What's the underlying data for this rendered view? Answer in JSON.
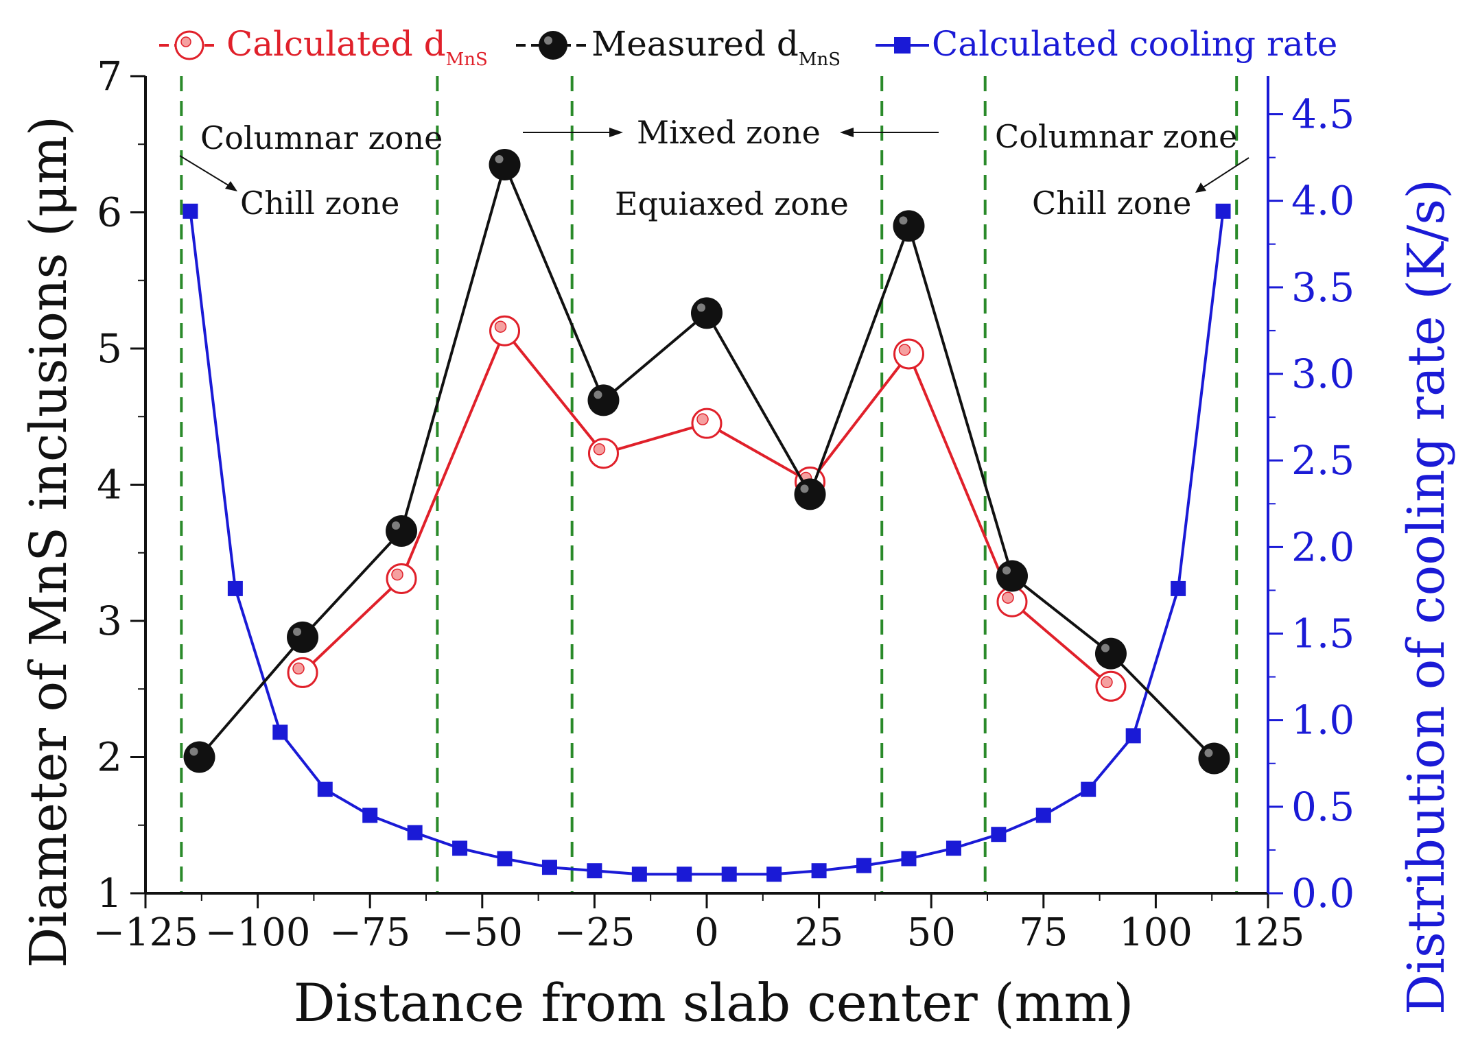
{
  "chart_data": {
    "type": "line",
    "xlabel": "Distance from slab center (mm)",
    "ylabel_left": "Diameter of MnS inclusions (μm)",
    "ylabel_right": "Distribution of cooling rate (K/s)",
    "xlim": [
      -125,
      125
    ],
    "ylim_left": [
      1,
      7
    ],
    "ylim_right": [
      0,
      4.72
    ],
    "x_ticks": [
      -125,
      -100,
      -75,
      -50,
      -25,
      0,
      25,
      50,
      75,
      100,
      125
    ],
    "x_tick_labels": [
      "−125",
      "−100",
      "−75",
      "−50",
      "−25",
      "0",
      "25",
      "50",
      "75",
      "100",
      "125"
    ],
    "y_left_ticks": [
      1,
      2,
      3,
      4,
      5,
      6,
      7
    ],
    "y_left_tick_labels": [
      "1",
      "2",
      "3",
      "4",
      "5",
      "6",
      "7"
    ],
    "y_right_ticks": [
      0,
      0.5,
      1.0,
      1.5,
      2.0,
      2.5,
      3.0,
      3.5,
      4.0,
      4.5
    ],
    "y_right_tick_labels": [
      "0.0",
      "0.5",
      "1.0",
      "1.5",
      "2.0",
      "2.5",
      "3.0",
      "3.5",
      "4.0",
      "4.5"
    ],
    "legend": {
      "placement": "top",
      "items": [
        {
          "label": "Calculated d",
          "sub": "MnS",
          "color": "#e0202a"
        },
        {
          "label": "Measured d",
          "sub": "MnS",
          "color": "#111111"
        },
        {
          "label": "Calculated cooling rate",
          "sub": "",
          "color": "#1a1ad6"
        }
      ]
    },
    "series": [
      {
        "name": "Calculated dMnS",
        "axis": "left",
        "color": "#e0202a",
        "marker": "open-circle",
        "x": [
          -90,
          -68,
          -45,
          -23,
          0,
          23,
          45,
          68,
          90
        ],
        "values": [
          2.62,
          3.31,
          5.13,
          4.23,
          4.45,
          4.02,
          4.96,
          3.14,
          2.52
        ]
      },
      {
        "name": "Measured dMnS",
        "axis": "left",
        "color": "#111111",
        "marker": "filled-circle",
        "x": [
          -113,
          -90,
          -68,
          -45,
          -23,
          0,
          23,
          45,
          68,
          90,
          113
        ],
        "values": [
          2.0,
          2.88,
          3.66,
          6.35,
          4.62,
          5.26,
          3.93,
          5.9,
          3.33,
          2.76,
          1.99
        ]
      },
      {
        "name": "Calculated cooling rate",
        "axis": "right",
        "color": "#1a1ad6",
        "marker": "square",
        "x": [
          -115,
          -105,
          -95,
          -85,
          -75,
          -65,
          -55,
          -45,
          -35,
          -25,
          -15,
          -5,
          5,
          15,
          25,
          35,
          45,
          55,
          65,
          75,
          85,
          95,
          105,
          115
        ],
        "values": [
          3.94,
          1.76,
          0.93,
          0.6,
          0.45,
          0.35,
          0.26,
          0.2,
          0.15,
          0.13,
          0.11,
          0.11,
          0.11,
          0.11,
          0.13,
          0.16,
          0.2,
          0.26,
          0.34,
          0.45,
          0.6,
          0.91,
          1.76,
          3.94
        ]
      }
    ],
    "zone_lines_x": [
      -117,
      -60,
      -30,
      39,
      62,
      118
    ],
    "annotations": {
      "columnar_left": "Columnar zone",
      "chill_left": "Chill zone",
      "mixed": "Mixed zone",
      "equiaxed": "Equiaxed zone",
      "columnar_right": "Columnar zone",
      "chill_right": "Chill zone"
    },
    "colors": {
      "left_axis": "#111111",
      "right_axis": "#1a1ad6",
      "zone_line": "#2a8a2a",
      "red": "#e0202a",
      "black": "#111111",
      "blue": "#1a1ad6"
    }
  }
}
